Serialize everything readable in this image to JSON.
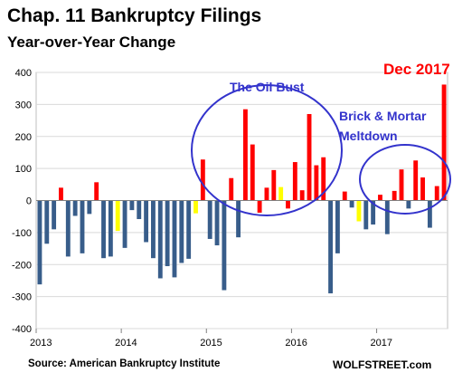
{
  "title": "Chap. 11 Bankruptcy Filings",
  "subtitle": "Year-over-Year Change",
  "source": "Source: American Bankruptcy Institute",
  "watermark": "WOLFSTREET.com",
  "colors": {
    "negative": "#385d8a",
    "positive": "#ff0000",
    "near_zero": "#ffff00",
    "ellipse": "#3333cc",
    "annotation_blue": "#3333cc",
    "annotation_red": "#ff0000"
  },
  "chart_data": {
    "type": "bar",
    "ylim": [
      -400,
      400
    ],
    "yticks": [
      -400,
      -300,
      -200,
      -100,
      0,
      100,
      200,
      300,
      400
    ],
    "xtick_labels": [
      "2013",
      "2014",
      "2015",
      "2016",
      "2017"
    ],
    "xtick_month_index": [
      0,
      12,
      24,
      36,
      48
    ],
    "grid": true,
    "values": [
      -262,
      -135,
      -90,
      40,
      -175,
      -48,
      -165,
      -42,
      57,
      -180,
      -175,
      -95,
      -148,
      -30,
      -58,
      -130,
      -180,
      -243,
      -205,
      -240,
      -195,
      -182,
      -40,
      128,
      -120,
      -140,
      -280,
      70,
      -115,
      285,
      175,
      -38,
      40,
      95,
      42,
      -25,
      120,
      32,
      270,
      110,
      135,
      -290,
      -165,
      28,
      -22,
      -65,
      -90,
      -75,
      18,
      -105,
      30,
      97,
      -25,
      125,
      72,
      -85,
      45,
      362
    ],
    "bar_colors": [
      "negative",
      "negative",
      "negative",
      "positive",
      "negative",
      "negative",
      "negative",
      "negative",
      "positive",
      "negative",
      "negative",
      "near_zero",
      "negative",
      "negative",
      "negative",
      "negative",
      "negative",
      "negative",
      "negative",
      "negative",
      "negative",
      "negative",
      "near_zero",
      "positive",
      "negative",
      "negative",
      "negative",
      "positive",
      "negative",
      "positive",
      "positive",
      "positive",
      "positive",
      "positive",
      "near_zero",
      "positive",
      "positive",
      "positive",
      "positive",
      "positive",
      "positive",
      "negative",
      "negative",
      "positive",
      "negative",
      "near_zero",
      "negative",
      "negative",
      "positive",
      "negative",
      "positive",
      "positive",
      "negative",
      "positive",
      "positive",
      "negative",
      "positive",
      "positive"
    ],
    "annotations": [
      {
        "text": "The Oil Bust",
        "color": "blue"
      },
      {
        "text": "Brick & Mortar",
        "color": "blue"
      },
      {
        "text": "Meltdown",
        "color": "blue"
      },
      {
        "text": "Dec 2017",
        "color": "red"
      }
    ]
  }
}
